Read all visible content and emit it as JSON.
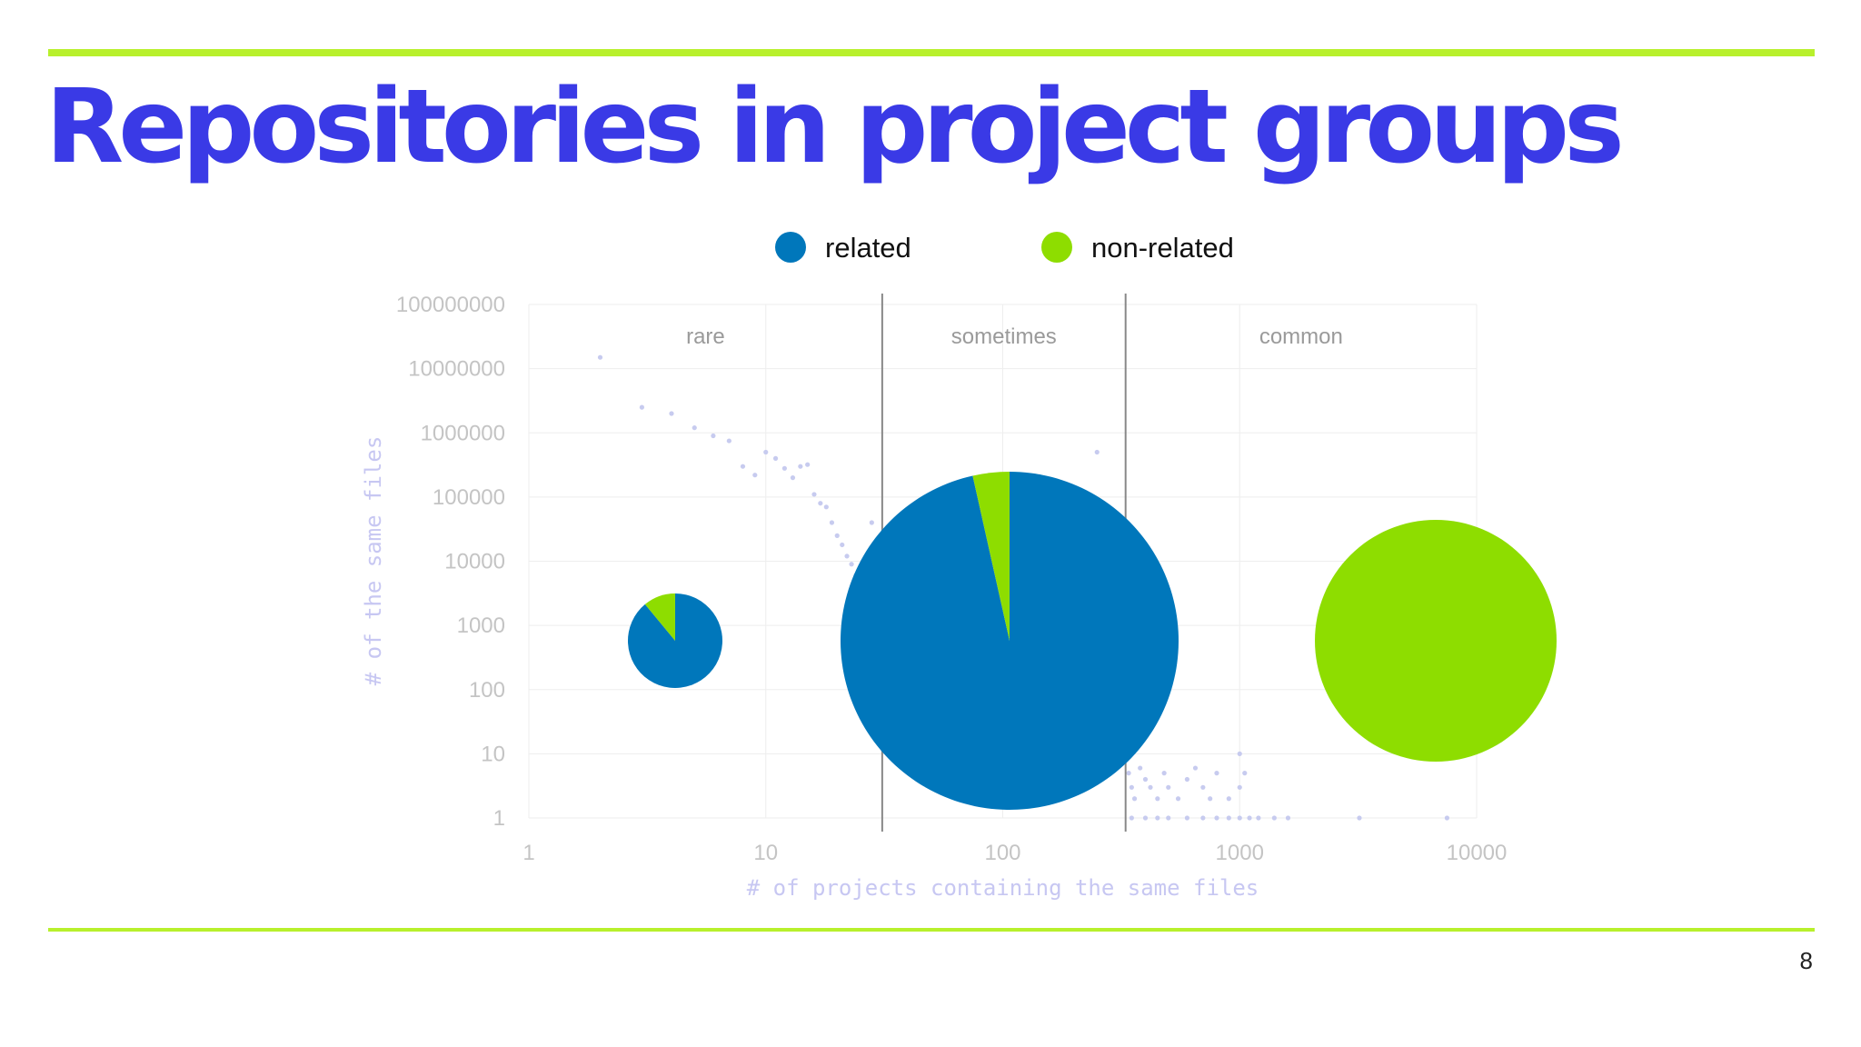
{
  "slide": {
    "title": "Repositories in project groups",
    "page_number": "8"
  },
  "colors": {
    "title": "#3a3ae6",
    "accent_rule": "#b8f02c",
    "related": "#0077bb",
    "non_related": "#8edd00",
    "scatter_points": "#c7cbef"
  },
  "chart_data": {
    "type": "scatter",
    "xlabel": "# of projects containing the same files",
    "ylabel": "# of the same files",
    "x_scale": "log",
    "y_scale": "log",
    "xlim": [
      1,
      10000
    ],
    "ylim": [
      1,
      100000000
    ],
    "x_ticks": [
      "1",
      "10",
      "100",
      "1000",
      "10000"
    ],
    "y_ticks": [
      "1",
      "10",
      "100",
      "1000",
      "10000",
      "100000",
      "1000000",
      "10000000",
      "100000000"
    ],
    "grid": true,
    "regions": [
      {
        "label": "rare",
        "x_from": 1,
        "x_to": 31
      },
      {
        "label": "sometimes",
        "x_from": 31,
        "x_to": 330
      },
      {
        "label": "common",
        "x_from": 330,
        "x_to": 10000
      }
    ],
    "region_boundaries": [
      31,
      330
    ],
    "legend": {
      "placement": "top-center",
      "entries": [
        {
          "name": "related",
          "color": "#0077bb"
        },
        {
          "name": "non-related",
          "color": "#8edd00"
        }
      ]
    },
    "pies": [
      {
        "region": "rare",
        "related": 0.89,
        "non_related": 0.11
      },
      {
        "region": "sometimes",
        "related": 0.965,
        "non_related": 0.035
      },
      {
        "region": "common",
        "related": 0.0,
        "non_related": 1.0
      }
    ],
    "points": [
      [
        2,
        15000000
      ],
      [
        3,
        2500000
      ],
      [
        4,
        2000000
      ],
      [
        5,
        1200000
      ],
      [
        6,
        900000
      ],
      [
        7,
        750000
      ],
      [
        8,
        300000
      ],
      [
        9,
        220000
      ],
      [
        10,
        500000
      ],
      [
        11,
        400000
      ],
      [
        12,
        280000
      ],
      [
        13,
        200000
      ],
      [
        14,
        300000
      ],
      [
        15,
        320000
      ],
      [
        16,
        110000
      ],
      [
        17,
        80000
      ],
      [
        18,
        70000
      ],
      [
        19,
        40000
      ],
      [
        20,
        25000
      ],
      [
        21,
        18000
      ],
      [
        22,
        12000
      ],
      [
        23,
        9000
      ],
      [
        24,
        6000
      ],
      [
        26,
        3000
      ],
      [
        28,
        40000
      ],
      [
        250,
        500000
      ],
      [
        330,
        8
      ],
      [
        340,
        5
      ],
      [
        350,
        3
      ],
      [
        360,
        2
      ],
      [
        380,
        6
      ],
      [
        400,
        4
      ],
      [
        420,
        3
      ],
      [
        450,
        2
      ],
      [
        480,
        5
      ],
      [
        500,
        3
      ],
      [
        550,
        2
      ],
      [
        600,
        4
      ],
      [
        650,
        6
      ],
      [
        700,
        3
      ],
      [
        750,
        2
      ],
      [
        800,
        5
      ],
      [
        900,
        2
      ],
      [
        1000,
        10
      ],
      [
        1000,
        3
      ],
      [
        1050,
        5
      ],
      [
        350,
        1
      ],
      [
        400,
        1
      ],
      [
        450,
        1
      ],
      [
        500,
        1
      ],
      [
        600,
        1
      ],
      [
        700,
        1
      ],
      [
        800,
        1
      ],
      [
        900,
        1
      ],
      [
        1000,
        1
      ],
      [
        1100,
        1
      ],
      [
        1200,
        1
      ],
      [
        1400,
        1
      ],
      [
        1600,
        1
      ],
      [
        3200,
        1
      ],
      [
        7500,
        1
      ]
    ]
  }
}
